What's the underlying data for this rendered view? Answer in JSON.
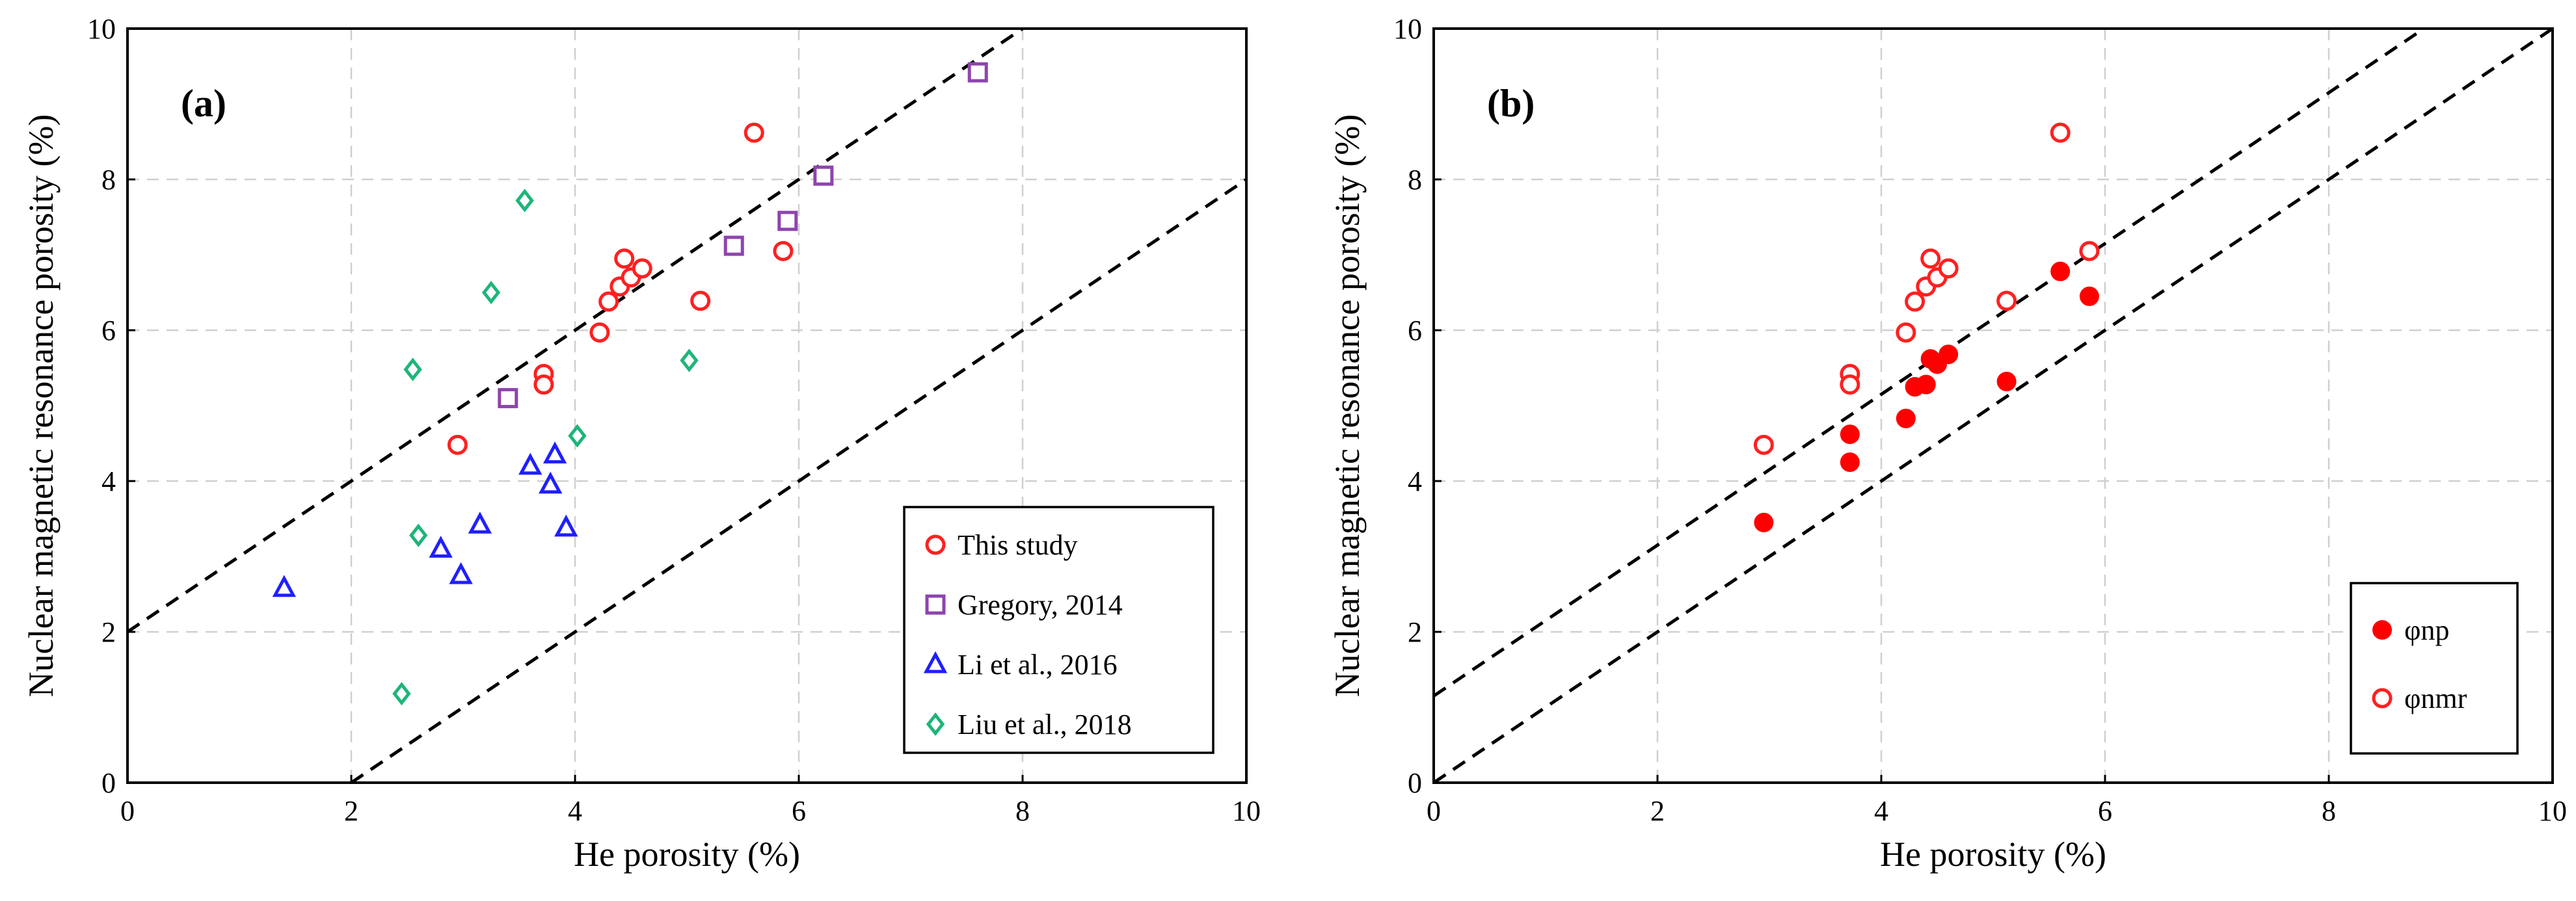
{
  "chart_data": [
    {
      "type": "scatter",
      "panel_label": "(a)",
      "xlabel": "He porosity (%)",
      "ylabel": "Nuclear magnetic resonance porosity (%)",
      "xlim": [
        0,
        10
      ],
      "ylim": [
        0,
        10
      ],
      "xticks": [
        "0",
        "2",
        "4",
        "6",
        "8",
        "10"
      ],
      "yticks": [
        "0",
        "2",
        "4",
        "6",
        "8",
        "10"
      ],
      "grid": true,
      "legend_position": "bottom-right",
      "reference_lines": [
        {
          "description": "y = x + 2",
          "points": [
            [
              0,
              2
            ],
            [
              8,
              10
            ]
          ]
        },
        {
          "description": "y = x - 2",
          "points": [
            [
              2,
              0
            ],
            [
              10,
              8
            ]
          ]
        }
      ],
      "series": [
        {
          "name": "This study",
          "marker": "circle-open",
          "color": "#ff2020",
          "points": [
            [
              2.95,
              4.48
            ],
            [
              3.72,
              5.42
            ],
            [
              3.72,
              5.28
            ],
            [
              4.22,
              5.97
            ],
            [
              4.3,
              6.38
            ],
            [
              4.4,
              6.58
            ],
            [
              4.44,
              6.95
            ],
            [
              4.5,
              6.7
            ],
            [
              4.6,
              6.82
            ],
            [
              5.12,
              6.39
            ],
            [
              5.6,
              8.62
            ],
            [
              5.86,
              7.05
            ]
          ]
        },
        {
          "name": "Gregory, 2014",
          "marker": "square-open",
          "color": "#8e44ad",
          "points": [
            [
              3.4,
              5.1
            ],
            [
              5.42,
              7.12
            ],
            [
              5.9,
              7.45
            ],
            [
              6.22,
              8.05
            ],
            [
              7.6,
              9.42
            ]
          ]
        },
        {
          "name": "Li et al., 2016",
          "marker": "triangle-open",
          "color": "#1f1fff",
          "points": [
            [
              1.4,
              2.58
            ],
            [
              2.8,
              3.1
            ],
            [
              2.98,
              2.75
            ],
            [
              3.15,
              3.42
            ],
            [
              3.6,
              4.2
            ],
            [
              3.78,
              3.95
            ],
            [
              3.82,
              4.35
            ],
            [
              3.92,
              3.38
            ]
          ]
        },
        {
          "name": "Liu et al., 2018",
          "marker": "diamond-open",
          "color": "#1db57a",
          "points": [
            [
              2.45,
              1.18
            ],
            [
              2.55,
              5.48
            ],
            [
              2.6,
              3.28
            ],
            [
              3.25,
              6.5
            ],
            [
              3.55,
              7.72
            ],
            [
              4.02,
              4.6
            ],
            [
              5.02,
              5.6
            ]
          ]
        }
      ]
    },
    {
      "type": "scatter",
      "panel_label": "(b)",
      "xlabel": "He porosity (%)",
      "ylabel": "Nuclear magnetic resonance porosity (%)",
      "xlim": [
        0,
        10
      ],
      "ylim": [
        0,
        10
      ],
      "xticks": [
        "0",
        "2",
        "4",
        "6",
        "8",
        "10"
      ],
      "yticks": [
        "0",
        "2",
        "4",
        "6",
        "8",
        "10"
      ],
      "grid": true,
      "legend_position": "bottom-right",
      "reference_lines": [
        {
          "description": "y = x",
          "points": [
            [
              0,
              0
            ],
            [
              10,
              10
            ]
          ]
        },
        {
          "description": "y = x + 1.15",
          "points": [
            [
              0,
              1.15
            ],
            [
              8.85,
              10
            ]
          ]
        }
      ],
      "series": [
        {
          "name": "φnp",
          "marker": "circle-filled",
          "color": "#ff0000",
          "points": [
            [
              2.95,
              3.45
            ],
            [
              3.72,
              4.62
            ],
            [
              3.72,
              4.25
            ],
            [
              4.22,
              4.83
            ],
            [
              4.3,
              5.25
            ],
            [
              4.4,
              5.28
            ],
            [
              4.44,
              5.62
            ],
            [
              4.5,
              5.55
            ],
            [
              4.6,
              5.68
            ],
            [
              5.12,
              5.32
            ],
            [
              5.6,
              6.78
            ],
            [
              5.86,
              6.45
            ]
          ]
        },
        {
          "name": "φnmr",
          "marker": "circle-open",
          "color": "#ff2020",
          "points": [
            [
              2.95,
              4.48
            ],
            [
              3.72,
              5.42
            ],
            [
              3.72,
              5.28
            ],
            [
              4.22,
              5.97
            ],
            [
              4.3,
              6.38
            ],
            [
              4.4,
              6.58
            ],
            [
              4.44,
              6.95
            ],
            [
              4.5,
              6.7
            ],
            [
              4.6,
              6.82
            ],
            [
              5.12,
              6.39
            ],
            [
              5.6,
              8.62
            ],
            [
              5.86,
              7.05
            ]
          ]
        }
      ]
    }
  ]
}
